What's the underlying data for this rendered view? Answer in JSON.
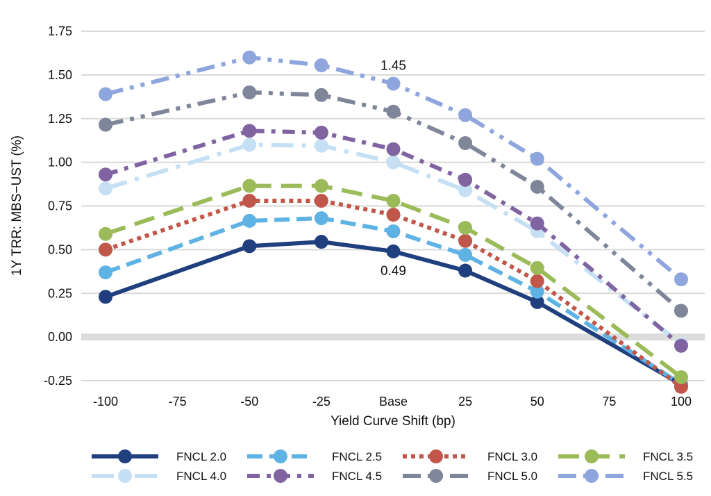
{
  "chart_data": {
    "type": "line",
    "title": "",
    "xlabel": "Yield Curve Shift (bp)",
    "ylabel": "1Y TRR: MBS−UST (%)",
    "categories": [
      "-100",
      "-75",
      "-50",
      "-25",
      "Base",
      "25",
      "50",
      "75",
      "100"
    ],
    "ylim": [
      -0.25,
      1.75
    ],
    "yticks": [
      "-0.25",
      "0.00",
      "0.25",
      "0.50",
      "0.75",
      "1.00",
      "1.25",
      "1.50",
      "1.75"
    ],
    "ytick_values": [
      -0.25,
      0,
      0.25,
      0.5,
      0.75,
      1.0,
      1.25,
      1.5,
      1.75
    ],
    "grid": true,
    "zero_line_emphasized": true,
    "legend_position": "bottom",
    "series": [
      {
        "name": "FNCL 2.0",
        "color": "#1f3f7f",
        "dash": "solid",
        "values": [
          0.23,
          null,
          0.52,
          0.545,
          0.49,
          0.38,
          0.2,
          null,
          -0.27
        ]
      },
      {
        "name": "FNCL 2.5",
        "color": "#5eb3e4",
        "dash": "dash",
        "values": [
          0.37,
          null,
          0.665,
          0.68,
          0.605,
          0.47,
          0.26,
          null,
          -0.27
        ]
      },
      {
        "name": "FNCL 3.0",
        "color": "#c0574a",
        "dash": "dot",
        "values": [
          0.5,
          null,
          0.78,
          0.78,
          0.7,
          0.55,
          0.32,
          null,
          -0.285
        ]
      },
      {
        "name": "FNCL 3.5",
        "color": "#9bbb59",
        "dash": "longdash",
        "values": [
          0.59,
          null,
          0.865,
          0.865,
          0.78,
          0.625,
          0.395,
          null,
          -0.23
        ]
      },
      {
        "name": "FNCL 4.0",
        "color": "#c5e0f4",
        "dash": "longdashdot",
        "values": [
          0.85,
          null,
          1.1,
          1.095,
          1.0,
          0.84,
          0.605,
          null,
          -0.04
        ]
      },
      {
        "name": "FNCL 4.5",
        "color": "#8064a2",
        "dash": "dashdot",
        "values": [
          0.93,
          null,
          1.18,
          1.17,
          1.075,
          0.9,
          0.65,
          null,
          -0.05
        ]
      },
      {
        "name": "FNCL 5.0",
        "color": "#7f8699",
        "dash": "longdashdotdot",
        "values": [
          1.215,
          null,
          1.4,
          1.385,
          1.29,
          1.11,
          0.86,
          null,
          0.15
        ]
      },
      {
        "name": "FNCL 5.5",
        "color": "#8ea6dd",
        "dash": "longdashdotdot2",
        "values": [
          1.39,
          null,
          1.6,
          1.555,
          1.45,
          1.27,
          1.02,
          null,
          0.33
        ]
      }
    ],
    "annotations": [
      {
        "text": "1.45",
        "series": "FNCL 5.5",
        "category": "Base",
        "placement": "above"
      },
      {
        "text": "0.49",
        "series": "FNCL 2.0",
        "category": "Base",
        "placement": "below"
      }
    ]
  }
}
